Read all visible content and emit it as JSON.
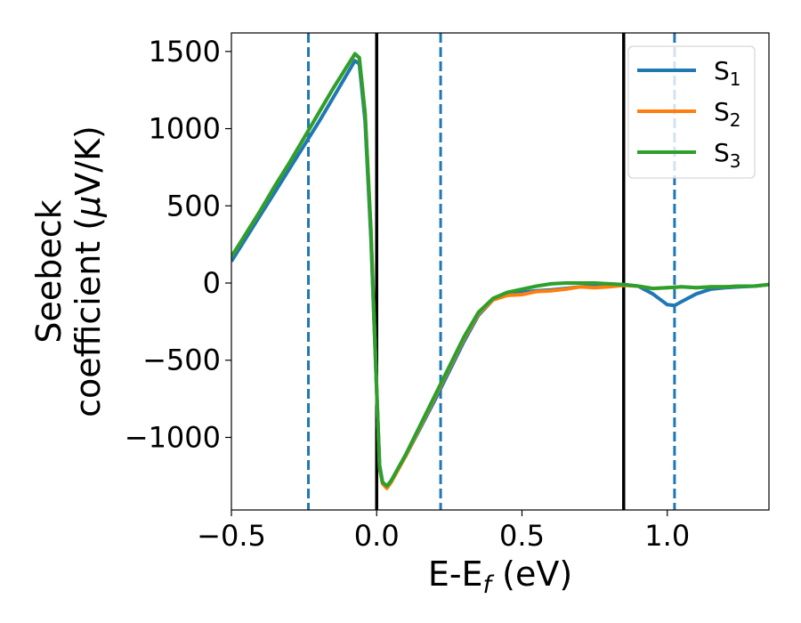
{
  "chart_data": {
    "type": "line",
    "xlabel": "E-E",
    "xlabel_sub": "f",
    "xlabel_unit": " (eV)",
    "ylabel_line1": "Seebeck",
    "ylabel_line2": "coefficient  (",
    "ylabel_mu": "μ",
    "ylabel_unit": "V/K)",
    "xlim": [
      -0.5,
      1.35
    ],
    "ylim": [
      -1470,
      1620
    ],
    "x_ticks": [
      -0.5,
      0.0,
      0.5,
      1.0
    ],
    "x_tick_labels": [
      "−0.5",
      "0.0",
      "0.5",
      "1.0"
    ],
    "y_ticks": [
      1500,
      1000,
      500,
      0,
      -500,
      -1000
    ],
    "y_tick_labels": [
      "1500",
      "1000",
      "500",
      "0",
      "−500",
      "−1000"
    ],
    "grid": false,
    "legend_position": "top-right",
    "vlines": [
      {
        "x": -0.235,
        "style": "dashed",
        "color": "#1f77b4"
      },
      {
        "x": 0.0,
        "style": "solid",
        "color": "#000000"
      },
      {
        "x": 0.22,
        "style": "dashed",
        "color": "#1f77b4"
      },
      {
        "x": 0.85,
        "style": "solid",
        "color": "#000000"
      },
      {
        "x": 1.025,
        "style": "dashed",
        "color": "#1f77b4"
      }
    ],
    "series": [
      {
        "name": "S",
        "sub": "1",
        "color": "#1f77b4",
        "x": [
          -0.5,
          -0.45,
          -0.4,
          -0.35,
          -0.3,
          -0.25,
          -0.2,
          -0.15,
          -0.1,
          -0.075,
          -0.06,
          -0.04,
          -0.02,
          0.0,
          0.01,
          0.02,
          0.035,
          0.05,
          0.1,
          0.15,
          0.2,
          0.25,
          0.3,
          0.35,
          0.4,
          0.45,
          0.5,
          0.55,
          0.6,
          0.65,
          0.7,
          0.75,
          0.8,
          0.85,
          0.9,
          0.95,
          1.0,
          1.025,
          1.05,
          1.1,
          1.15,
          1.2,
          1.25,
          1.3,
          1.35
        ],
        "y": [
          140,
          290,
          440,
          590,
          740,
          890,
          1040,
          1200,
          1360,
          1440,
          1420,
          1050,
          300,
          -700,
          -1180,
          -1290,
          -1320,
          -1280,
          -1120,
          -940,
          -760,
          -570,
          -380,
          -210,
          -110,
          -70,
          -60,
          -50,
          -45,
          -35,
          -25,
          -20,
          -15,
          -10,
          -20,
          -70,
          -140,
          -145,
          -120,
          -70,
          -40,
          -30,
          -25,
          -20,
          -10
        ]
      },
      {
        "name": "S",
        "sub": "2",
        "color": "#ff7f0e",
        "x": [
          -0.5,
          -0.45,
          -0.4,
          -0.35,
          -0.3,
          -0.25,
          -0.2,
          -0.15,
          -0.1,
          -0.075,
          -0.06,
          -0.04,
          -0.02,
          0.0,
          0.01,
          0.02,
          0.035,
          0.05,
          0.1,
          0.15,
          0.2,
          0.25,
          0.3,
          0.35,
          0.4,
          0.45,
          0.5,
          0.55,
          0.6,
          0.65,
          0.7,
          0.75,
          0.8,
          0.85,
          0.9,
          0.95,
          1.0,
          1.05,
          1.1,
          1.15,
          1.2,
          1.25,
          1.3,
          1.35
        ],
        "y": [
          170,
          320,
          470,
          630,
          780,
          940,
          1100,
          1260,
          1410,
          1480,
          1460,
          1100,
          350,
          -680,
          -1200,
          -1300,
          -1330,
          -1290,
          -1120,
          -930,
          -740,
          -550,
          -360,
          -200,
          -110,
          -80,
          -75,
          -55,
          -50,
          -40,
          -25,
          -30,
          -25,
          -15,
          -20,
          -35,
          -30,
          -25,
          -30,
          -25,
          -25,
          -20,
          -20,
          -10
        ]
      },
      {
        "name": "S",
        "sub": "3",
        "color": "#2ca02c",
        "x": [
          -0.5,
          -0.45,
          -0.4,
          -0.35,
          -0.3,
          -0.25,
          -0.2,
          -0.15,
          -0.1,
          -0.075,
          -0.06,
          -0.04,
          -0.02,
          0.0,
          0.01,
          0.02,
          0.035,
          0.05,
          0.1,
          0.15,
          0.2,
          0.25,
          0.3,
          0.35,
          0.4,
          0.45,
          0.5,
          0.55,
          0.6,
          0.65,
          0.7,
          0.75,
          0.8,
          0.85,
          0.9,
          0.95,
          1.0,
          1.05,
          1.1,
          1.15,
          1.2,
          1.25,
          1.3,
          1.35
        ],
        "y": [
          170,
          320,
          470,
          630,
          780,
          940,
          1100,
          1260,
          1410,
          1485,
          1460,
          1100,
          350,
          -680,
          -1190,
          -1290,
          -1315,
          -1280,
          -1110,
          -920,
          -730,
          -540,
          -350,
          -190,
          -100,
          -60,
          -40,
          -20,
          -5,
          0,
          0,
          0,
          -5,
          -10,
          -20,
          -35,
          -30,
          -25,
          -30,
          -25,
          -25,
          -20,
          -20,
          -10
        ]
      }
    ]
  }
}
